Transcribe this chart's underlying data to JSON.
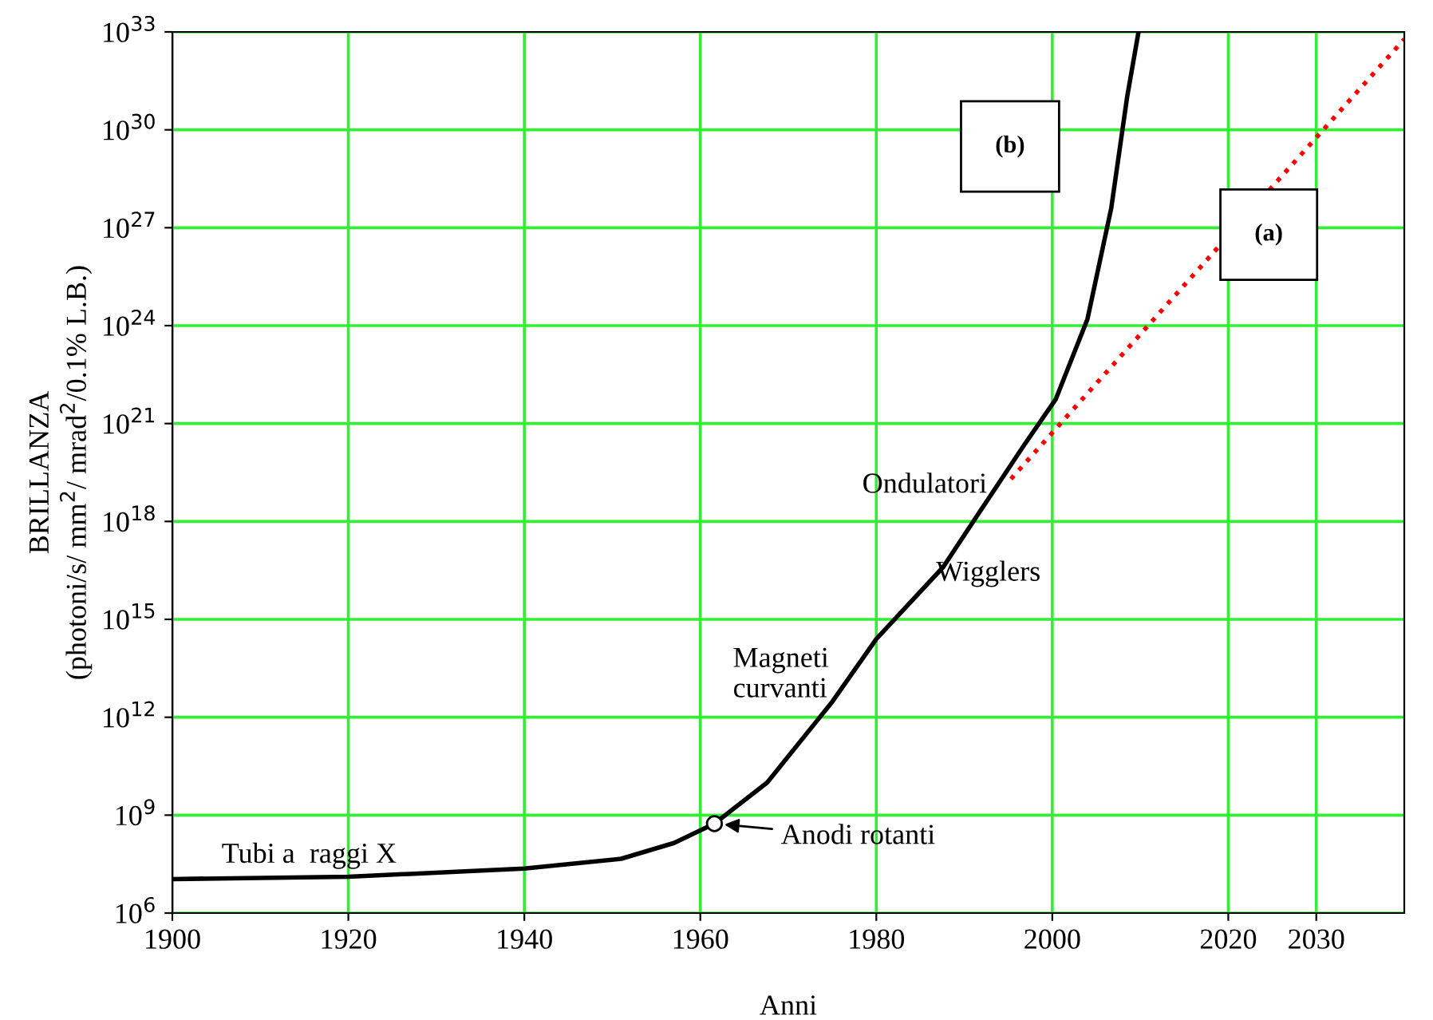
{
  "chart_data": {
    "type": "line",
    "xlabel": "Anni",
    "ylabel": "BRILLANZA\n(photoni/s/ mm$^{2}$/ mrad$^{2}$/0.1% L.B.)",
    "log": "y",
    "grid": true,
    "marker": "none",
    "xlim": [
      1900,
      2040
    ],
    "xticks": [
      1900,
      1920,
      1940,
      1960,
      1980,
      2000,
      2020,
      2030
    ],
    "ylim": [
      1000000.0,
      1e+33
    ],
    "yticks": [
      {
        "value": 1000000.0,
        "label": "10$^{6}$"
      },
      {
        "value": 1000000000.0,
        "label": "10$^{9}$"
      },
      {
        "value": 1000000000000.0,
        "label": "10$^{12}$"
      },
      {
        "value": 1000000000000000.0,
        "label": "10$^{15}$"
      },
      {
        "value": 1e+18,
        "label": "10$^{18}$"
      },
      {
        "value": 1e+21,
        "label": "10$^{21}$"
      },
      {
        "value": 1e+24,
        "label": "10$^{24}$"
      },
      {
        "value": 1e+27,
        "label": "10$^{27}$"
      },
      {
        "value": 1e+30,
        "label": "10$^{30}$"
      },
      {
        "value": 1e+33,
        "label": "10$^{33}$"
      }
    ],
    "series": [
      {
        "color": "#000000",
        "line_style": "solid",
        "x": [
          1900,
          1920,
          1940,
          1951,
          1957,
          1961.6,
          1967.6,
          1975,
          1980,
          1987.6,
          1991.3,
          1996.7,
          2000.4,
          2004,
          2006.7,
          2008.5,
          2009.8
        ],
        "values": [
          11000000.0,
          13000000.0,
          23000000.0,
          46000000.0,
          140000000.0,
          550000000.0,
          10000000000.0,
          3000000000000.0,
          250000000000000.0,
          4e+16,
          1.3e+18,
          2e+20,
          5.6e+21,
          1.6e+24,
          4e+27,
          1e+31,
          1e+33
        ]
      },
      {
        "color": "#ff0000",
        "line_style": "dotted",
        "x": [
          1995.3,
          2040
        ],
        "values": [
          2e+19,
          6e+32
        ]
      },
      {
        "type": "scatter",
        "color": "#000000",
        "marker": "circle",
        "x": [
          1961.6
        ],
        "values": [
          550000000.0
        ]
      }
    ],
    "annotations": [
      "Tubi a  raggi X",
      "Magneti\ncurvanti",
      "Wigglers",
      "Ondulatori",
      "(b)",
      "(a)",
      {
        "text": "Anodi rotanti",
        "x": 1961.6,
        "y": 550000000.0
      }
    ]
  }
}
